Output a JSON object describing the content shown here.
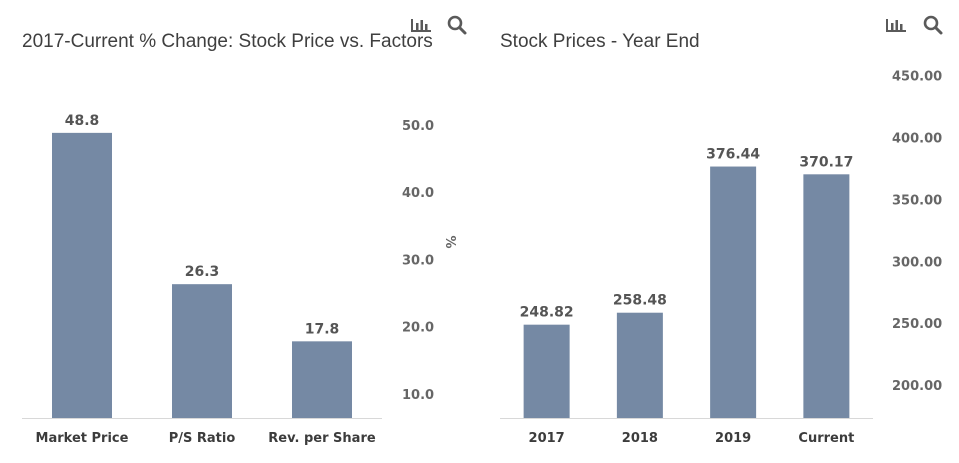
{
  "toolbar_icons": [
    "bar-chart-icon",
    "search-icon"
  ],
  "colors": {
    "bar": "#7589a4",
    "text": "#3c3c3c"
  },
  "chart_data": [
    {
      "type": "bar",
      "title": "2017-Current % Change: Stock Price vs. Factors",
      "categories": [
        "Market Price",
        "P/S Ratio",
        "Rev. per Share"
      ],
      "values": [
        48.8,
        26.3,
        17.8
      ],
      "value_labels": [
        "48.8",
        "26.3",
        "17.8"
      ],
      "yticks": [
        "10.0",
        "20.0",
        "30.0",
        "40.0",
        "50.0"
      ],
      "ytick_values": [
        10,
        20,
        30,
        40,
        50
      ],
      "ylabel": "%",
      "ylim": [
        6.4,
        52.2
      ],
      "y_axis_side": "right",
      "grid": false
    },
    {
      "type": "bar",
      "title": "Stock Prices - Year End",
      "categories": [
        "2017",
        "2018",
        "2019",
        "Current"
      ],
      "values": [
        248.82,
        258.48,
        376.44,
        370.17
      ],
      "value_labels": [
        "248.82",
        "258.48",
        "376.44",
        "370.17"
      ],
      "yticks": [
        "200.00",
        "250.00",
        "300.00",
        "350.00",
        "400.00",
        "450.00"
      ],
      "ytick_values": [
        200,
        250,
        300,
        350,
        400,
        450
      ],
      "ylabel": "",
      "ylim": [
        173.5,
        460
      ],
      "y_axis_side": "right",
      "grid": false
    }
  ]
}
